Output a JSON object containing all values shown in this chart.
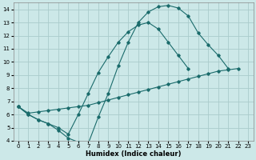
{
  "xlabel": "Humidex (Indice chaleur)",
  "bg_color": "#cce8e8",
  "grid_color": "#aacccc",
  "line_color": "#1a6b6b",
  "line1_x": [
    0,
    1,
    2,
    3,
    4,
    5,
    6,
    7,
    8,
    9,
    10,
    11,
    12,
    13,
    14,
    15,
    16,
    17,
    18,
    19,
    20,
    21
  ],
  "line1_y": [
    6.6,
    6.0,
    5.6,
    5.3,
    4.8,
    4.2,
    3.9,
    3.8,
    5.8,
    7.6,
    9.7,
    11.5,
    13.0,
    13.8,
    14.2,
    14.3,
    14.1,
    13.5,
    12.2,
    11.3,
    10.5,
    9.5
  ],
  "line2_x": [
    0,
    1,
    2,
    3,
    4,
    5,
    6,
    7,
    8,
    9,
    10,
    11,
    12,
    13,
    14,
    15,
    16,
    17,
    18,
    19,
    20,
    21,
    22,
    23
  ],
  "line2_y": [
    6.6,
    6.0,
    5.6,
    5.3,
    5.0,
    4.5,
    6.0,
    7.6,
    9.2,
    10.4,
    11.5,
    12.3,
    12.8,
    13.0,
    12.5,
    11.5,
    10.5,
    9.5,
    null,
    null,
    null,
    null,
    null,
    null
  ],
  "line3_x": [
    0,
    1,
    2,
    3,
    4,
    5,
    6,
    7,
    8,
    9,
    10,
    11,
    12,
    13,
    14,
    15,
    16,
    17,
    18,
    19,
    20,
    21,
    22,
    23
  ],
  "line3_y": [
    6.6,
    6.1,
    6.2,
    6.3,
    6.4,
    6.5,
    6.6,
    6.7,
    6.9,
    7.1,
    7.3,
    7.5,
    7.7,
    7.9,
    8.1,
    8.3,
    8.5,
    8.7,
    8.9,
    9.1,
    9.3,
    9.4,
    9.5,
    null
  ],
  "xlim": [
    -0.5,
    23.5
  ],
  "ylim": [
    4,
    14.5
  ],
  "yticks": [
    4,
    5,
    6,
    7,
    8,
    9,
    10,
    11,
    12,
    13,
    14
  ],
  "xticks": [
    0,
    1,
    2,
    3,
    4,
    5,
    6,
    7,
    8,
    9,
    10,
    11,
    12,
    13,
    14,
    15,
    16,
    17,
    18,
    19,
    20,
    21,
    22,
    23
  ],
  "tick_fontsize": 5,
  "xlabel_fontsize": 6
}
